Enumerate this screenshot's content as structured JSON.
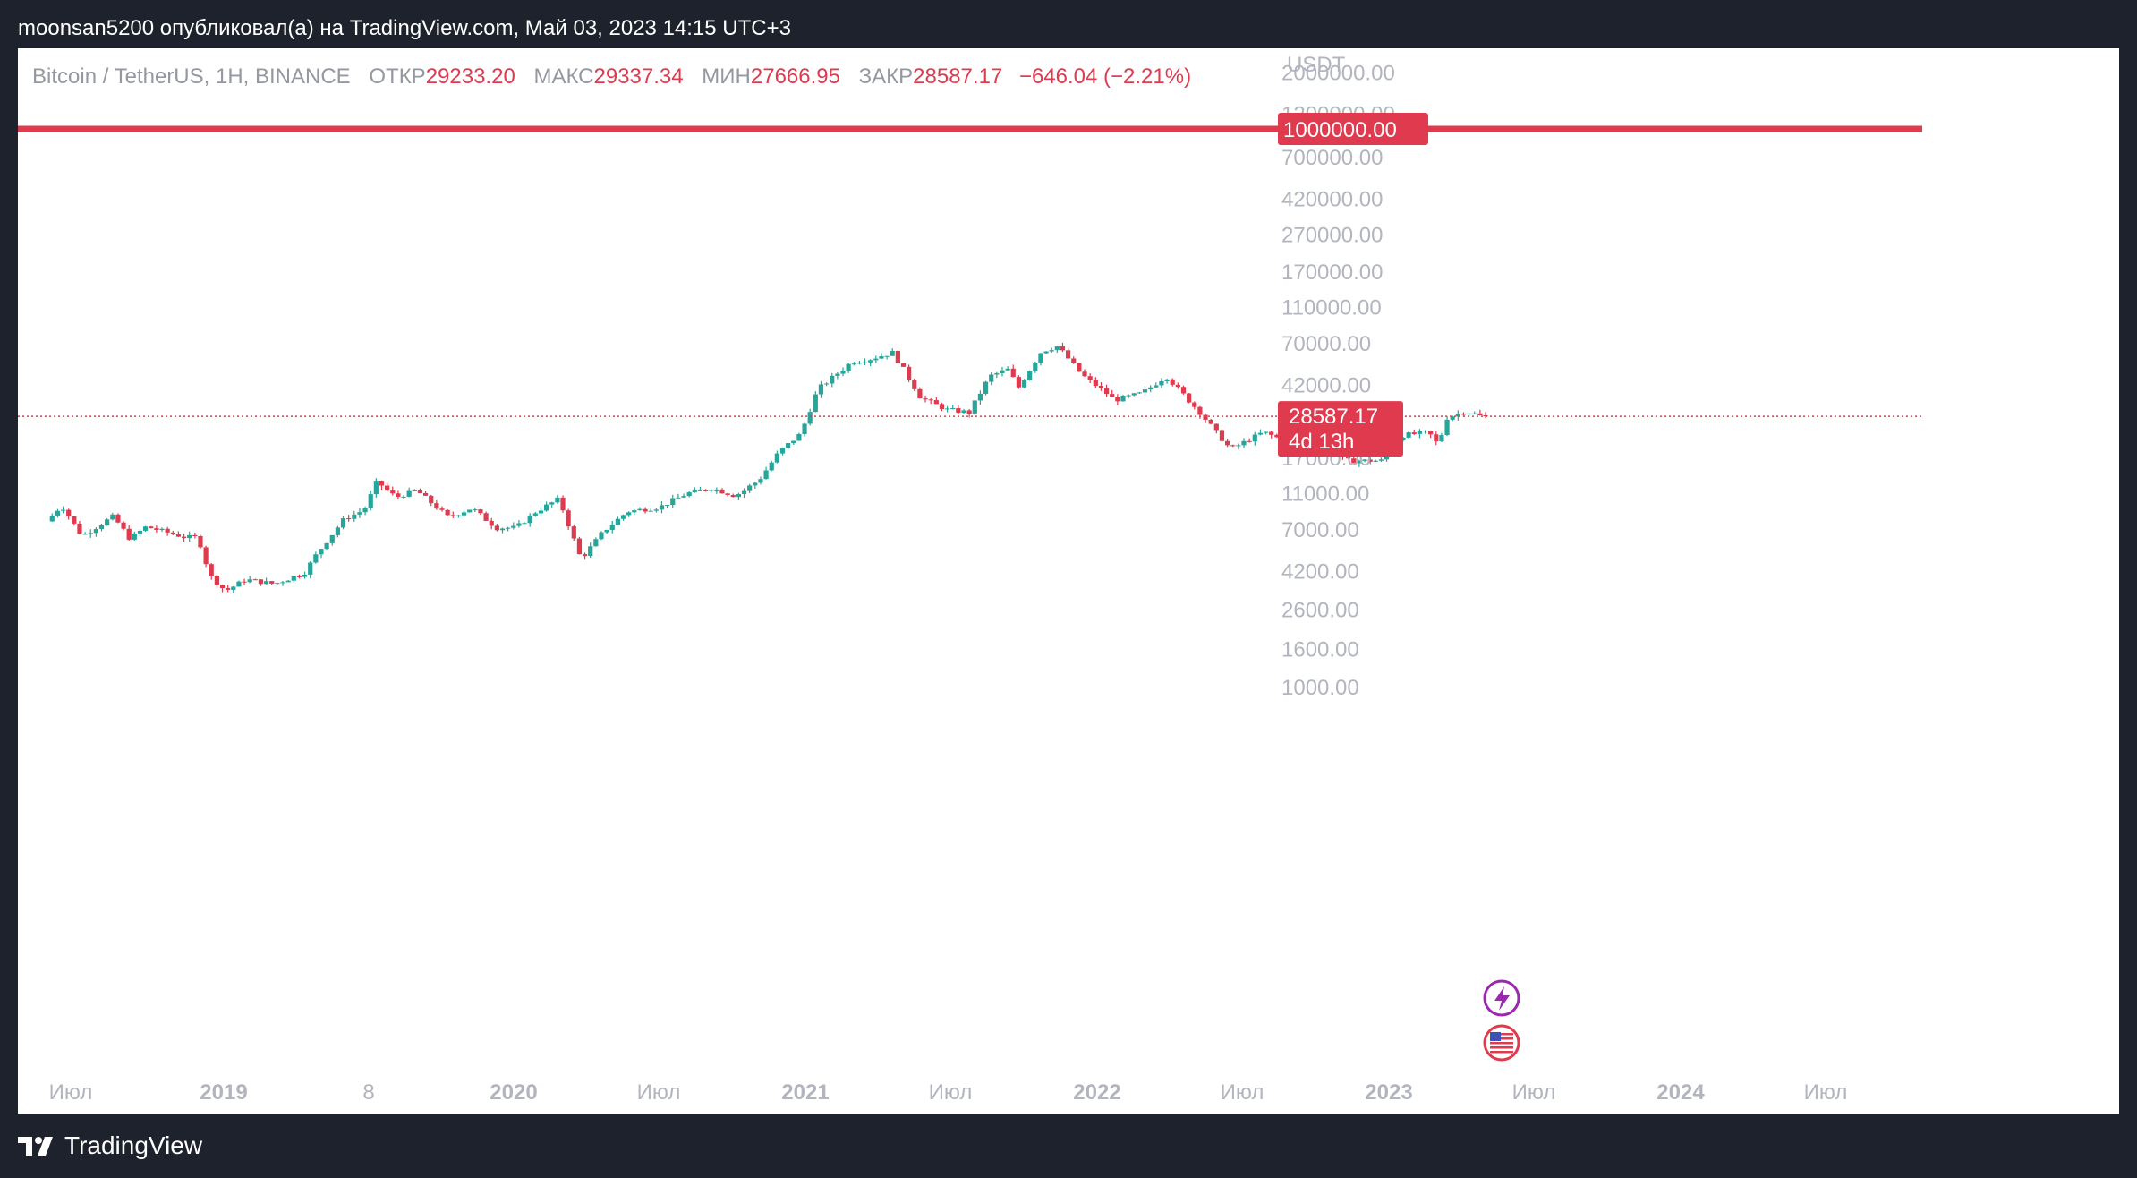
{
  "header": {
    "published_text": "moonsan5200 опубликовал(а) на TradingView.com, Май 03, 2023 14:15 UTC+3"
  },
  "legend": {
    "symbol": "Bitcoin / TetherUS, 1H, BINANCE",
    "open_label": "ОТКР",
    "open_value": "29233.20",
    "high_label": "МАКС",
    "high_value": "29337.34",
    "low_label": "МИН",
    "low_value": "27666.95",
    "close_label": "ЗАКР",
    "close_value": "28587.17",
    "change": "−646.04 (−2.21%)"
  },
  "footer": {
    "brand": "TradingView"
  },
  "colors": {
    "up": "#26a69a",
    "down": "#e03a4f",
    "bg_outer": "#1e222d",
    "axis_text": "#b2b5be"
  },
  "chart_data": {
    "type": "candlestick",
    "symbol": "BTCUSDT",
    "currency_label": "USDT",
    "y_scale": "log",
    "y_ticks": [
      "2000000.00",
      "1200000.00",
      "700000.00",
      "420000.00",
      "270000.00",
      "170000.00",
      "110000.00",
      "70000.00",
      "42000.00",
      "17000.00",
      "11000.00",
      "7000.00",
      "4200.00",
      "2600.00",
      "1600.00",
      "1000.00"
    ],
    "x_ticks": [
      "Июл",
      "2019",
      "8",
      "2020",
      "Июл",
      "2021",
      "Июл",
      "2022",
      "Июл",
      "2023",
      "Июл",
      "2024",
      "Июл"
    ],
    "horizontal_line": {
      "value": 1000000,
      "label": "1000000.00"
    },
    "last_price": {
      "value": 28587.17,
      "label": "28587.17",
      "countdown": "4d 13h"
    },
    "price_path": [
      [
        "2018-05-01",
        7800
      ],
      [
        "2018-05-20",
        9500
      ],
      [
        "2018-06-15",
        6500
      ],
      [
        "2018-07-25",
        8300
      ],
      [
        "2018-08-15",
        6300
      ],
      [
        "2018-09-05",
        7300
      ],
      [
        "2018-10-25",
        6400
      ],
      [
        "2018-11-10",
        6400
      ],
      [
        "2018-11-25",
        4000
      ],
      [
        "2018-12-15",
        3300
      ],
      [
        "2019-01-10",
        3800
      ],
      [
        "2019-02-15",
        3600
      ],
      [
        "2019-03-25",
        4100
      ],
      [
        "2019-04-10",
        5200
      ],
      [
        "2019-05-15",
        8000
      ],
      [
        "2019-06-10",
        9000
      ],
      [
        "2019-06-26",
        12800
      ],
      [
        "2019-07-20",
        10500
      ],
      [
        "2019-08-15",
        11500
      ],
      [
        "2019-09-25",
        8200
      ],
      [
        "2019-10-25",
        9200
      ],
      [
        "2019-11-25",
        7200
      ],
      [
        "2019-12-20",
        7200
      ],
      [
        "2020-01-15",
        8800
      ],
      [
        "2020-02-13",
        10300
      ],
      [
        "2020-03-12",
        4900
      ],
      [
        "2020-04-10",
        6900
      ],
      [
        "2020-05-10",
        8800
      ],
      [
        "2020-06-20",
        9300
      ],
      [
        "2020-07-25",
        11000
      ],
      [
        "2020-08-25",
        11800
      ],
      [
        "2020-09-25",
        10700
      ],
      [
        "2020-10-25",
        13000
      ],
      [
        "2020-11-20",
        18500
      ],
      [
        "2020-12-17",
        23000
      ],
      [
        "2021-01-08",
        40000
      ],
      [
        "2021-02-20",
        56000
      ],
      [
        "2021-03-15",
        58000
      ],
      [
        "2021-04-14",
        63000
      ],
      [
        "2021-05-19",
        36000
      ],
      [
        "2021-06-22",
        31000
      ],
      [
        "2021-07-20",
        30000
      ],
      [
        "2021-08-15",
        47000
      ],
      [
        "2021-09-07",
        51000
      ],
      [
        "2021-09-21",
        41000
      ],
      [
        "2021-10-20",
        64000
      ],
      [
        "2021-11-10",
        68000
      ],
      [
        "2021-12-10",
        48000
      ],
      [
        "2022-01-22",
        35000
      ],
      [
        "2022-02-25",
        38000
      ],
      [
        "2022-03-28",
        47000
      ],
      [
        "2022-05-10",
        30000
      ],
      [
        "2022-06-18",
        19000
      ],
      [
        "2022-07-30",
        23500
      ],
      [
        "2022-09-10",
        20000
      ],
      [
        "2022-10-25",
        20500
      ],
      [
        "2022-11-10",
        16500
      ],
      [
        "2022-12-30",
        16500
      ],
      [
        "2023-01-20",
        22500
      ],
      [
        "2023-02-25",
        23500
      ],
      [
        "2023-03-10",
        20000
      ],
      [
        "2023-03-20",
        28000
      ],
      [
        "2023-04-14",
        30500
      ],
      [
        "2023-05-03",
        28587
      ]
    ]
  }
}
